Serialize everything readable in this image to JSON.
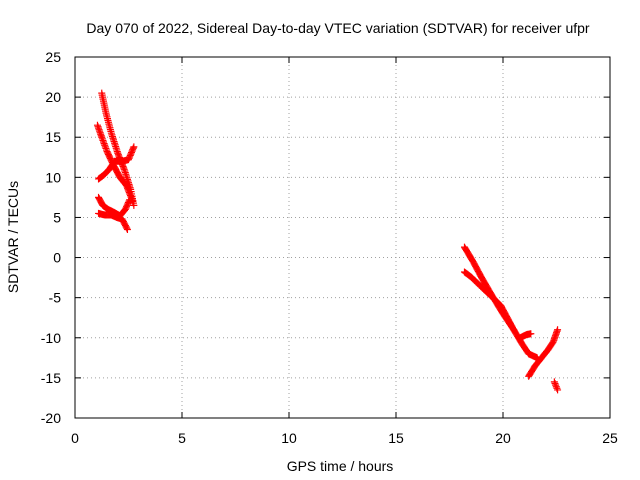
{
  "chart_data": {
    "type": "scatter",
    "title": "Day 070 of 2022, Sidereal Day-to-day VTEC variation (SDTVAR) for receiver ufpr",
    "xlabel": "GPS time / hours",
    "ylabel": "SDTVAR / TECUs",
    "xlim": [
      0,
      25
    ],
    "ylim": [
      -20,
      25
    ],
    "xticks": [
      0,
      5,
      10,
      15,
      20,
      25
    ],
    "yticks": [
      -20,
      -15,
      -10,
      -5,
      0,
      5,
      10,
      15,
      20,
      25
    ],
    "xtick_labels": [
      "0",
      "5",
      "10",
      "15",
      "20",
      "25"
    ],
    "ytick_labels": [
      "-20",
      "-15",
      "-10",
      "-5",
      "0",
      "5",
      "10",
      "15",
      "20",
      "25"
    ],
    "grid": true,
    "marker": "+",
    "color": "#ff0000",
    "series": [
      {
        "name": "SDTVAR",
        "segments": [
          [
            [
              1.25,
              20.5
            ],
            [
              1.45,
              18.0
            ],
            [
              1.7,
              15.5
            ],
            [
              2.0,
              13.0
            ],
            [
              2.3,
              11.0
            ],
            [
              2.6,
              8.5
            ],
            [
              2.75,
              6.5
            ]
          ],
          [
            [
              1.05,
              16.5
            ],
            [
              1.25,
              15.0
            ],
            [
              1.5,
              13.2
            ],
            [
              1.8,
              11.5
            ],
            [
              2.1,
              10.0
            ],
            [
              2.4,
              9.0
            ],
            [
              2.7,
              7.0
            ]
          ],
          [
            [
              1.1,
              9.8
            ],
            [
              1.35,
              10.3
            ],
            [
              1.6,
              11.0
            ],
            [
              1.85,
              12.0
            ],
            [
              2.2,
              12.0
            ],
            [
              2.5,
              12.2
            ],
            [
              2.75,
              13.8
            ]
          ],
          [
            [
              1.1,
              5.5
            ],
            [
              1.4,
              5.3
            ],
            [
              1.7,
              5.3
            ],
            [
              1.95,
              5.0
            ],
            [
              2.2,
              4.8
            ],
            [
              2.45,
              3.5
            ]
          ],
          [
            [
              1.1,
              7.5
            ],
            [
              1.3,
              6.5
            ],
            [
              1.55,
              6.0
            ],
            [
              1.85,
              5.6
            ],
            [
              2.1,
              5.2
            ],
            [
              2.35,
              6.0
            ],
            [
              2.55,
              7.2
            ]
          ],
          [
            [
              18.2,
              1.3
            ],
            [
              18.6,
              -0.5
            ],
            [
              19.0,
              -2.5
            ],
            [
              19.5,
              -4.8
            ],
            [
              20.0,
              -7.0
            ],
            [
              20.5,
              -9.0
            ],
            [
              20.9,
              -10.8
            ],
            [
              21.2,
              -12.0
            ],
            [
              21.6,
              -12.5
            ]
          ],
          [
            [
              18.2,
              -1.8
            ],
            [
              18.5,
              -2.4
            ],
            [
              18.85,
              -3.3
            ],
            [
              19.2,
              -4.2
            ],
            [
              19.6,
              -5.2
            ],
            [
              19.9,
              -6.0
            ],
            [
              20.2,
              -7.5
            ],
            [
              20.5,
              -9.0
            ]
          ],
          [
            [
              20.8,
              -10.0
            ],
            [
              21.1,
              -9.6
            ],
            [
              21.3,
              -9.5
            ]
          ],
          [
            [
              21.2,
              -14.8
            ],
            [
              21.5,
              -13.5
            ],
            [
              21.8,
              -12.5
            ],
            [
              22.1,
              -11.5
            ],
            [
              22.35,
              -10.5
            ],
            [
              22.55,
              -9.0
            ]
          ],
          [
            [
              22.4,
              -15.5
            ],
            [
              22.55,
              -16.5
            ]
          ]
        ]
      }
    ]
  }
}
